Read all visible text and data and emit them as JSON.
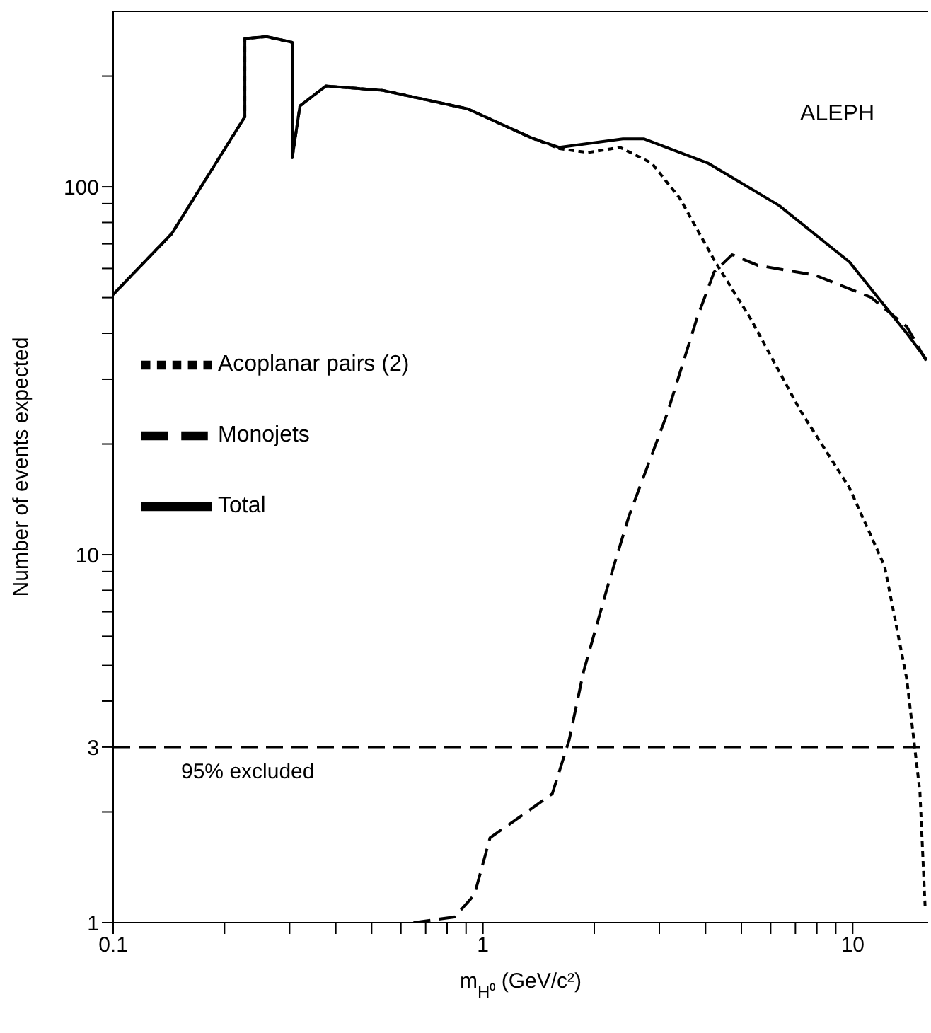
{
  "chart_data": {
    "type": "line",
    "xlabel": "m$_{H⁰}$ (GeV/c²)",
    "ylabel": "Number of events expected",
    "log": "xy",
    "xlim": [
      0.1,
      16
    ],
    "ylim": [
      1,
      300
    ],
    "xticks": [
      0.1,
      {
        "value": 0.2,
        "label": null
      },
      {
        "value": 0.3,
        "label": null
      },
      {
        "value": 0.4,
        "label": null
      },
      {
        "value": 0.5,
        "label": null
      },
      {
        "value": 0.6,
        "label": null
      },
      {
        "value": 0.7,
        "label": null
      },
      {
        "value": 0.8,
        "label": null
      },
      {
        "value": 0.9,
        "label": null
      },
      1,
      {
        "value": 2,
        "label": null
      },
      {
        "value": 3,
        "label": null
      },
      {
        "value": 4,
        "label": null
      },
      {
        "value": 5,
        "label": null
      },
      {
        "value": 6,
        "label": null
      },
      {
        "value": 7,
        "label": null
      },
      {
        "value": 8,
        "label": null
      },
      {
        "value": 9,
        "label": null
      },
      10
    ],
    "yticks": [
      1,
      {
        "value": 2,
        "label": null
      },
      3,
      {
        "value": 4,
        "label": null
      },
      {
        "value": 5,
        "label": null
      },
      {
        "value": 6,
        "label": null
      },
      {
        "value": 7,
        "label": null
      },
      {
        "value": 8,
        "label": null
      },
      {
        "value": 9,
        "label": null
      },
      10,
      {
        "value": 20,
        "label": null
      },
      {
        "value": 30,
        "label": null
      },
      {
        "value": 40,
        "label": null
      },
      {
        "value": 50,
        "label": null
      },
      {
        "value": 60,
        "label": null
      },
      {
        "value": 70,
        "label": null
      },
      {
        "value": 80,
        "label": null
      },
      {
        "value": 90,
        "label": null
      },
      100,
      {
        "value": 200,
        "label": null
      }
    ],
    "legend": "left",
    "marker": "none",
    "series": [
      {
        "name": "Acoplanar pairs (2)",
        "color": "#000000",
        "line_style": "dotted",
        "x": [
          0.1,
          0.144,
          0.227,
          0.227,
          0.26,
          0.305,
          0.305,
          0.32,
          0.376,
          0.535,
          0.908,
          1.35,
          1.61,
          1.92,
          2.35,
          2.86,
          3.41,
          4.25,
          5.29,
          7.21,
          9.8,
          12.2,
          14,
          15.2,
          15.7
        ],
        "values": [
          51,
          74.6,
          155,
          253,
          256,
          247,
          120,
          166,
          188,
          183,
          163,
          136,
          127,
          124,
          128,
          116,
          93,
          62.5,
          43.9,
          24.7,
          15.2,
          9.3,
          4.6,
          2.26,
          1.1
        ]
      },
      {
        "name": "Monojets",
        "color": "#000000",
        "line_style": "dashed",
        "x": [
          0.649,
          0.838,
          0.948,
          1.045,
          1.26,
          1.54,
          1.71,
          1.87,
          2.17,
          2.48,
          3.15,
          3.79,
          4.22,
          4.72,
          5.53,
          7.88,
          11.2,
          14,
          15.8
        ],
        "values": [
          1,
          1.036,
          1.19,
          1.7,
          1.94,
          2.24,
          3.13,
          4.8,
          8.15,
          12.7,
          24.2,
          43.9,
          58.7,
          65.4,
          61.2,
          57.6,
          50.1,
          41.7,
          33.7
        ]
      },
      {
        "name": "Total",
        "color": "#000000",
        "line_style": "solid",
        "x": [
          0.1,
          0.144,
          0.227,
          0.227,
          0.26,
          0.305,
          0.305,
          0.32,
          0.376,
          0.535,
          0.908,
          1.35,
          1.61,
          2.39,
          2.73,
          4.06,
          6.32,
          9.8,
          14,
          15.8
        ],
        "values": [
          51,
          74.6,
          155,
          253,
          256,
          247,
          120,
          166,
          188,
          183,
          163,
          136,
          128,
          135,
          135,
          116,
          89,
          62.5,
          40,
          34
        ]
      }
    ],
    "ref_lines": [
      {
        "axis": "y",
        "value": 3,
        "label": "95% excluded",
        "line_style": "dashed",
        "color": "#000000"
      }
    ],
    "annotations": [
      "ALEPH"
    ]
  }
}
